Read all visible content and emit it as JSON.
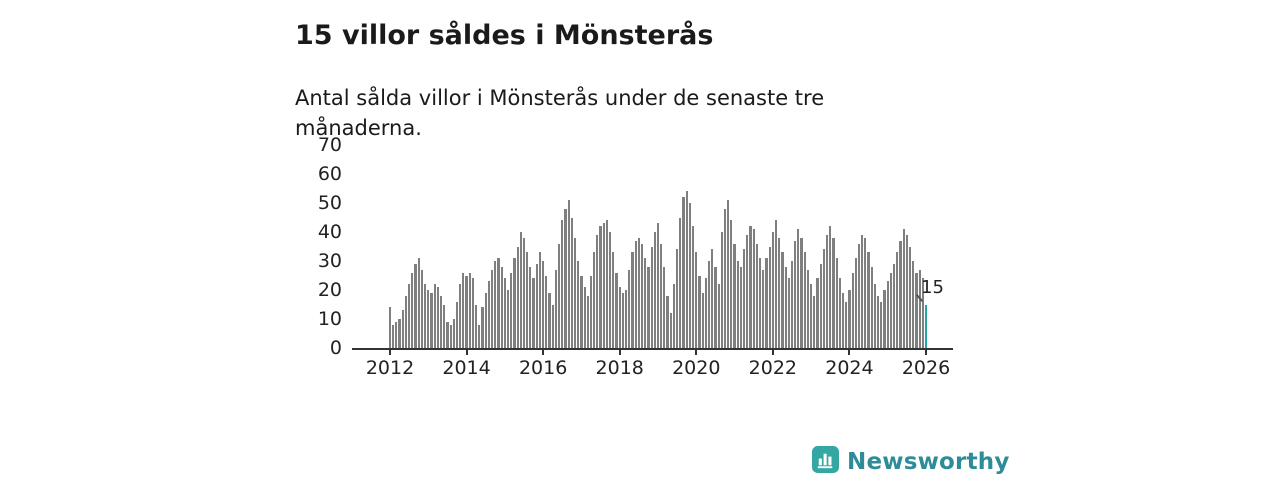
{
  "title": "15 villor såldes i Mönsterås",
  "subtitle": "Antal sålda villor i Mönsterås under de senaste tre månaderna.",
  "annotation": "15",
  "branding": {
    "wordmark": "Newsworthy"
  },
  "colors": {
    "bar": "#7f7f7f",
    "accent": "#1fa8a6",
    "wordmark": "#2e8c99",
    "axis": "#333333"
  },
  "chart_data": {
    "type": "bar",
    "title": "15 villor såldes i Mönsterås",
    "subtitle": "Antal sålda villor i Mönsterås under de senaste tre månaderna.",
    "frequency": "monthly",
    "x_start": "2012-01",
    "x_end": "2026-01",
    "ylim": [
      0,
      70
    ],
    "y_ticks": [
      0,
      10,
      20,
      30,
      40,
      50,
      60,
      70
    ],
    "x_ticks": [
      2012,
      2014,
      2016,
      2018,
      2020,
      2022,
      2024,
      2026
    ],
    "grid": false,
    "legend": false,
    "highlight_last": true,
    "last_value_label": "15",
    "values": [
      14,
      8,
      9,
      10,
      13,
      18,
      22,
      26,
      29,
      31,
      27,
      22,
      20,
      19,
      22,
      21,
      18,
      15,
      9,
      8,
      10,
      16,
      22,
      26,
      25,
      26,
      24,
      15,
      8,
      14,
      19,
      23,
      27,
      30,
      31,
      28,
      24,
      20,
      26,
      31,
      35,
      40,
      38,
      33,
      28,
      24,
      29,
      33,
      30,
      25,
      19,
      15,
      27,
      36,
      44,
      48,
      51,
      45,
      38,
      30,
      25,
      21,
      18,
      25,
      33,
      39,
      42,
      43,
      44,
      40,
      33,
      26,
      21,
      19,
      20,
      27,
      33,
      37,
      38,
      36,
      31,
      28,
      35,
      40,
      43,
      36,
      28,
      18,
      12,
      22,
      34,
      45,
      52,
      54,
      50,
      42,
      33,
      25,
      19,
      24,
      30,
      34,
      28,
      22,
      40,
      48,
      51,
      44,
      36,
      30,
      28,
      34,
      39,
      42,
      41,
      36,
      31,
      27,
      31,
      35,
      40,
      44,
      38,
      33,
      28,
      24,
      30,
      37,
      41,
      38,
      33,
      27,
      22,
      18,
      24,
      29,
      34,
      39,
      42,
      38,
      31,
      24,
      19,
      16,
      20,
      26,
      31,
      36,
      39,
      38,
      33,
      28,
      22,
      18,
      16,
      20,
      23,
      26,
      29,
      33,
      37,
      41,
      39,
      35,
      30,
      26,
      27,
      24,
      15
    ]
  }
}
